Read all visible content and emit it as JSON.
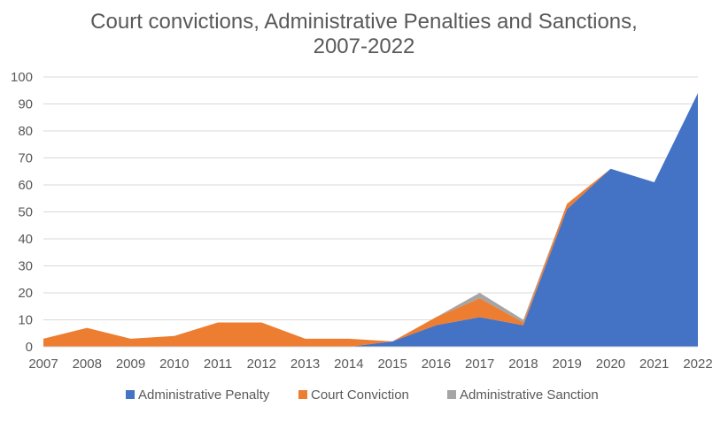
{
  "chart_data": {
    "type": "area",
    "stacked": true,
    "title_lines": [
      "Court convictions, Administrative Penalties and Sanctions,",
      "2007-2022"
    ],
    "xlabel": "",
    "ylabel": "",
    "categories": [
      "2007",
      "2008",
      "2009",
      "2010",
      "2011",
      "2012",
      "2013",
      "2014",
      "2015",
      "2016",
      "2017",
      "2018",
      "2019",
      "2020",
      "2021",
      "2022"
    ],
    "ylim": [
      0,
      100
    ],
    "yticks": [
      "0",
      "10",
      "20",
      "30",
      "40",
      "50",
      "60",
      "70",
      "80",
      "90",
      "100"
    ],
    "grid": true,
    "legend_position": "bottom",
    "series": [
      {
        "name": "Administrative Penalty",
        "color": "#4472c4",
        "values": [
          0,
          0,
          0,
          0,
          0,
          0,
          0,
          0,
          2,
          8,
          11,
          8,
          51,
          66,
          61,
          94
        ]
      },
      {
        "name": "Court Conviction",
        "color": "#ed7d31",
        "values": [
          3,
          7,
          3,
          4,
          9,
          9,
          3,
          3,
          0,
          3,
          7,
          1,
          2,
          0,
          0,
          0
        ]
      },
      {
        "name": "Administrative Sanction",
        "color": "#a5a5a5",
        "values": [
          0,
          0,
          0,
          0,
          0,
          0,
          0,
          0,
          0,
          0,
          2,
          1,
          0,
          0,
          0,
          0
        ]
      }
    ]
  }
}
